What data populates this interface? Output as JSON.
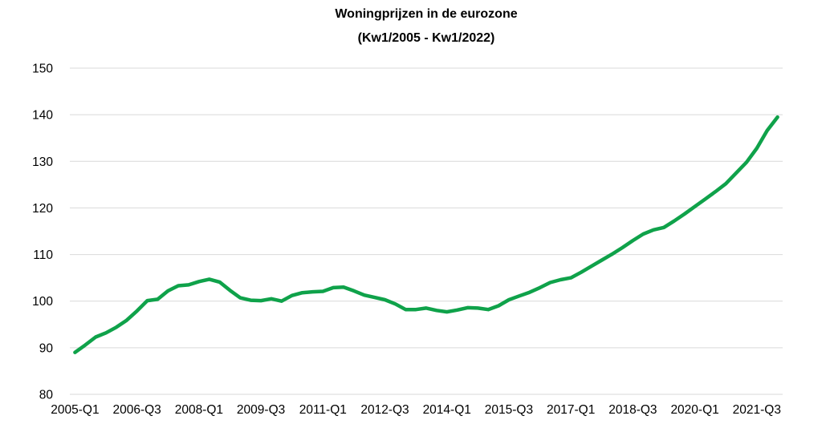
{
  "chart": {
    "title": "Woningprijzen in de eurozone",
    "subtitle": "(Kw1/2005 - Kw1/2022)"
  },
  "chart_data": {
    "type": "line",
    "title": "Woningprijzen in de eurozone",
    "subtitle": "(Kw1/2005 - Kw1/2022)",
    "categories": [
      "2005-Q1",
      "2005-Q2",
      "2005-Q3",
      "2005-Q4",
      "2006-Q1",
      "2006-Q2",
      "2006-Q3",
      "2006-Q4",
      "2007-Q1",
      "2007-Q2",
      "2007-Q3",
      "2007-Q4",
      "2008-Q1",
      "2008-Q2",
      "2008-Q3",
      "2008-Q4",
      "2009-Q1",
      "2009-Q2",
      "2009-Q3",
      "2009-Q4",
      "2010-Q1",
      "2010-Q2",
      "2010-Q3",
      "2010-Q4",
      "2011-Q1",
      "2011-Q2",
      "2011-Q3",
      "2011-Q4",
      "2012-Q1",
      "2012-Q2",
      "2012-Q3",
      "2012-Q4",
      "2013-Q1",
      "2013-Q2",
      "2013-Q3",
      "2013-Q4",
      "2014-Q1",
      "2014-Q2",
      "2014-Q3",
      "2014-Q4",
      "2015-Q1",
      "2015-Q2",
      "2015-Q3",
      "2015-Q4",
      "2016-Q1",
      "2016-Q2",
      "2016-Q3",
      "2016-Q4",
      "2017-Q1",
      "2017-Q2",
      "2017-Q3",
      "2017-Q4",
      "2018-Q1",
      "2018-Q2",
      "2018-Q3",
      "2018-Q4",
      "2019-Q1",
      "2019-Q2",
      "2019-Q3",
      "2019-Q4",
      "2020-Q1",
      "2020-Q2",
      "2020-Q3",
      "2020-Q4",
      "2021-Q1",
      "2021-Q2",
      "2021-Q3",
      "2021-Q4",
      "2022-Q1"
    ],
    "values": [
      89.0,
      90.6,
      92.3,
      93.2,
      94.4,
      95.9,
      97.9,
      100.1,
      100.4,
      102.2,
      103.3,
      103.5,
      104.2,
      104.7,
      104.1,
      102.3,
      100.7,
      100.2,
      100.1,
      100.5,
      100.0,
      101.2,
      101.8,
      102.0,
      102.1,
      102.9,
      103.0,
      102.2,
      101.3,
      100.8,
      100.3,
      99.4,
      98.2,
      98.2,
      98.5,
      98.0,
      97.7,
      98.1,
      98.6,
      98.5,
      98.2,
      99.0,
      100.3,
      101.1,
      101.9,
      102.9,
      104.0,
      104.6,
      105.0,
      106.2,
      107.5,
      108.8,
      110.1,
      111.5,
      113.0,
      114.4,
      115.3,
      115.8,
      117.2,
      118.7,
      120.3,
      121.9,
      123.5,
      125.2,
      127.5,
      129.8,
      132.8,
      136.6,
      139.5
    ],
    "x_tick_labels": [
      "2005-Q1",
      "2006-Q3",
      "2008-Q1",
      "2009-Q3",
      "2011-Q1",
      "2012-Q3",
      "2014-Q1",
      "2015-Q3",
      "2017-Q1",
      "2018-Q3",
      "2020-Q1",
      "2021-Q3"
    ],
    "x_tick_interval": 6,
    "y_tick_labels": [
      "80",
      "90",
      "100",
      "110",
      "120",
      "130",
      "140",
      "150"
    ],
    "ylim": [
      80,
      150
    ],
    "y_tick_step": 10,
    "grid": "horizontal",
    "legend": "none",
    "line_color": "#0fa24a",
    "gridline_color": "#d9d9d9",
    "text_color": "#000000",
    "background_color": "#ffffff"
  }
}
